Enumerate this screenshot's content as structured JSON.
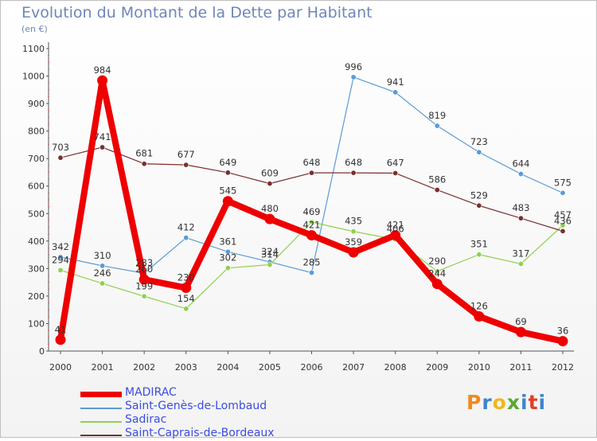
{
  "header": {
    "title": "Evolution du Montant de la Dette par Habitant",
    "subtitle": "(en €)"
  },
  "brand": {
    "letters": [
      "P",
      "r",
      "o",
      "x",
      "i",
      "t",
      "i"
    ],
    "colors": [
      "#f08a1e",
      "#3f86c8",
      "#f0b81e",
      "#5aa832",
      "#3f86c8",
      "#e0402a",
      "#3f86c8"
    ]
  },
  "chart_data": {
    "type": "line",
    "x": [
      2000,
      2001,
      2002,
      2003,
      2004,
      2005,
      2006,
      2007,
      2008,
      2009,
      2010,
      2011,
      2012
    ],
    "ylim": [
      0,
      1100
    ],
    "yticks": [
      0,
      100,
      200,
      300,
      400,
      500,
      600,
      700,
      800,
      900,
      1000,
      1100
    ],
    "grid": false,
    "legend_position": "bottom-left",
    "series": [
      {
        "name": "MADIRAC",
        "color": "#ee0000",
        "values": [
          41,
          984,
          260,
          230,
          545,
          480,
          421,
          359,
          421,
          244,
          126,
          69,
          36
        ]
      },
      {
        "name": "Saint-Genès-de-Lombaud",
        "color": "#5b9bd5",
        "values": [
          342,
          310,
          283,
          412,
          361,
          324,
          285,
          996,
          941,
          819,
          723,
          644,
          575
        ]
      },
      {
        "name": "Sadirac",
        "color": "#8fd14f",
        "values": [
          294,
          246,
          199,
          154,
          302,
          314,
          469,
          435,
          406,
          290,
          351,
          317,
          457
        ]
      },
      {
        "name": "Saint-Caprais-de-Bordeaux",
        "color": "#7a2f2f",
        "values": [
          703,
          741,
          681,
          677,
          649,
          609,
          648,
          648,
          647,
          586,
          529,
          483,
          436
        ]
      }
    ]
  }
}
